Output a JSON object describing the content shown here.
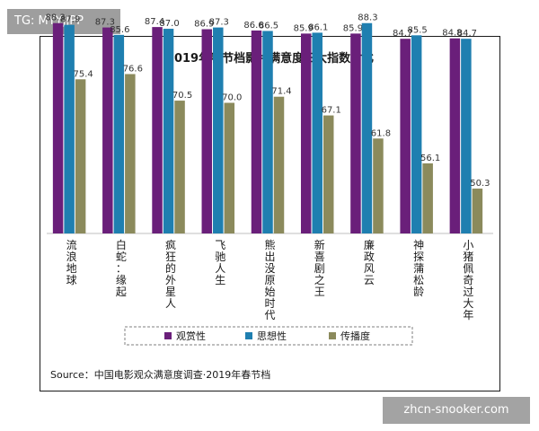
{
  "watermark_top": "TG: MYYJJPP",
  "watermark_bottom": "zhcn-snooker.com",
  "source": "Source：中国电影观众满意度调查·2019年春节档",
  "chart_data": {
    "type": "bar",
    "title": "2019年春节档影片满意度三大指数对比",
    "categories": [
      "流浪地球",
      "白蛇：缘起",
      "疯狂的外星人",
      "飞驰人生",
      "熊出没原始时代",
      "新喜剧之王",
      "廉政风云",
      "神探蒲松龄",
      "小猪佩奇过大年"
    ],
    "series": [
      {
        "name": "观赏性",
        "color": "#6a1f7a",
        "values": [
          88.3,
          87.3,
          87.4,
          86.9,
          86.6,
          85.9,
          85.9,
          84.7,
          84.8
        ]
      },
      {
        "name": "思想性",
        "color": "#1f7fb0",
        "values": [
          87.9,
          85.6,
          87.0,
          87.3,
          86.5,
          86.1,
          88.3,
          85.5,
          84.7
        ]
      },
      {
        "name": "传播度",
        "color": "#8b8a5c",
        "values": [
          75.4,
          76.6,
          70.5,
          70.0,
          71.4,
          67.1,
          61.8,
          56.1,
          50.3
        ]
      }
    ],
    "ylim": [
      40,
      90
    ],
    "legend_position": "bottom",
    "grid": false
  }
}
